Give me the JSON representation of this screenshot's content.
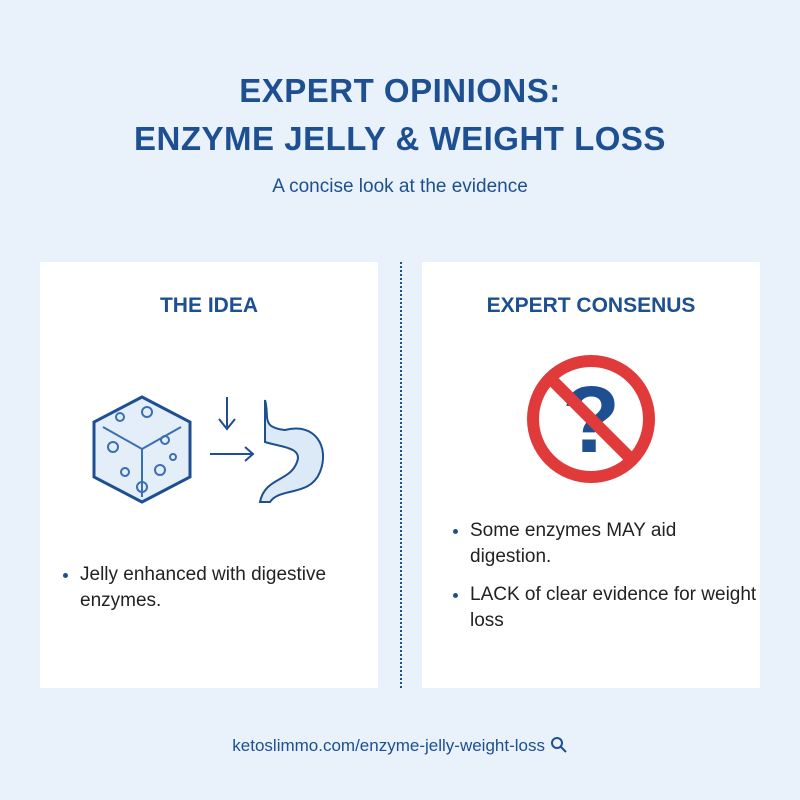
{
  "header": {
    "title_line1": "EXPERT OPINIONS:",
    "title_line2": "ENZYME JELLY & WEIGHT LOSS",
    "subtitle": "A concise look at the evidence"
  },
  "left_card": {
    "heading": "THE IDEA",
    "bullets": [
      "Jelly enhanced with digestive enzymes."
    ]
  },
  "right_card": {
    "heading": "EXPERT CONSENUS",
    "bullets": [
      "Some enzymes MAY aid digestion.",
      "LACK of clear evidence for weight loss"
    ]
  },
  "footer": {
    "url": "ketoslimmo.com/enzyme-jelly-weight-loss"
  }
}
